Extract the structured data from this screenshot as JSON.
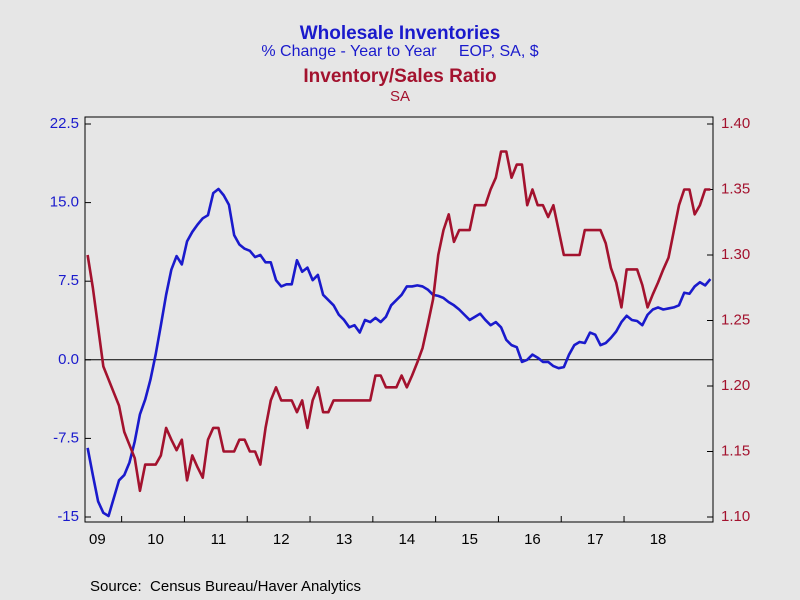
{
  "chart_data": {
    "type": "line",
    "title": "Wholesale Inventories",
    "subtitle": "% Change - Year to Year     EOP, SA, $",
    "title2": "Inventory/Sales Ratio",
    "subtitle2": "SA",
    "source": "Source:  Census Bureau/Haver Analytics",
    "categories": [
      "09",
      null,
      null,
      null,
      null,
      null,
      null,
      null,
      null,
      null,
      null,
      null,
      null,
      "10",
      null,
      null,
      null,
      null,
      null,
      null,
      null,
      null,
      null,
      null,
      null,
      "11",
      null,
      null,
      null,
      null,
      null,
      null,
      null,
      null,
      null,
      null,
      null,
      "12",
      null,
      null,
      null,
      null,
      null,
      null,
      null,
      null,
      null,
      null,
      null,
      "13",
      null,
      null,
      null,
      null,
      null,
      null,
      null,
      null,
      null,
      null,
      null,
      "14",
      null,
      null,
      null,
      null,
      null,
      null,
      null,
      null,
      null,
      null,
      null,
      "15",
      null,
      null,
      null,
      null,
      null,
      null,
      null,
      null,
      null,
      null,
      null,
      "16",
      null,
      null,
      null,
      null,
      null,
      null,
      null,
      null,
      null,
      null,
      null,
      "17",
      null,
      null,
      null,
      null,
      null,
      null,
      null,
      null,
      null,
      null,
      null,
      "18",
      null,
      null,
      null,
      null,
      null,
      null,
      null,
      null,
      null,
      null
    ],
    "ylim": [
      -15,
      22.5
    ],
    "yticks": [
      -15,
      {
        "value": -7.5,
        "label": "-7.5"
      },
      {
        "value": 0,
        "label": "0.0"
      },
      7.5,
      {
        "value": 15,
        "label": "15.0"
      },
      22.5
    ],
    "y2lim": [
      1.1,
      1.4
    ],
    "y2ticks": [
      {
        "value": 1.1,
        "label": "1.10"
      },
      1.15,
      {
        "value": 1.2,
        "label": "1.20"
      },
      1.25,
      {
        "value": 1.3,
        "label": "1.30"
      },
      1.35,
      {
        "value": 1.4,
        "label": "1.40"
      }
    ],
    "zero_line": true,
    "series": [
      {
        "name": "Wholesale Inventories",
        "color": "#1a1acc",
        "axis": "y",
        "values": [
          -8.4,
          -11,
          -13.5,
          -14.6,
          -14.9,
          -13.2,
          -11.5,
          -11,
          -9.8,
          -7.8,
          -5.2,
          -3.8,
          -1.9,
          0.5,
          3.3,
          6.2,
          8.6,
          9.9,
          9.1,
          11.3,
          12.2,
          12.9,
          13.5,
          13.8,
          15.9,
          16.3,
          15.7,
          14.8,
          11.9,
          11,
          10.6,
          10.4,
          9.8,
          10,
          9.3,
          9.3,
          7.6,
          7,
          7.2,
          7.2,
          9.5,
          8.4,
          8.8,
          7.6,
          8.1,
          6.2,
          5.7,
          5.2,
          4.3,
          3.8,
          3.1,
          3.3,
          2.6,
          3.8,
          3.6,
          4,
          3.6,
          4.1,
          5.2,
          5.7,
          6.2,
          7,
          7,
          7.1,
          7,
          6.7,
          6.2,
          6.1,
          5.9,
          5.5,
          5.2,
          4.8,
          4.3,
          3.8,
          4.1,
          4.4,
          3.8,
          3.3,
          3.6,
          3.1,
          1.9,
          1.4,
          1.2,
          -0.2,
          0,
          0.5,
          0.2,
          -0.2,
          -0.2,
          -0.6,
          -0.8,
          -0.7,
          0.5,
          1.4,
          1.7,
          1.6,
          2.6,
          2.4,
          1.4,
          1.6,
          2.1,
          2.7,
          3.6,
          4.2,
          3.8,
          3.7,
          3.3,
          4.3,
          4.8,
          5,
          4.8,
          4.9,
          5,
          5.2,
          6.4,
          6.3,
          7,
          7.4,
          7.1,
          7.7
        ]
      },
      {
        "name": "Inventory/Sales Ratio",
        "color": "#a3122e",
        "axis": "y2",
        "values": [
          1.3,
          1.275,
          1.245,
          1.215,
          1.205,
          1.195,
          1.185,
          1.165,
          1.155,
          1.145,
          1.12,
          1.14,
          1.14,
          1.14,
          1.147,
          1.168,
          1.159,
          1.151,
          1.159,
          1.128,
          1.147,
          1.138,
          1.13,
          1.159,
          1.168,
          1.168,
          1.15,
          1.15,
          1.15,
          1.159,
          1.159,
          1.15,
          1.15,
          1.14,
          1.168,
          1.189,
          1.199,
          1.189,
          1.189,
          1.189,
          1.18,
          1.189,
          1.168,
          1.189,
          1.199,
          1.18,
          1.18,
          1.189,
          1.189,
          1.189,
          1.189,
          1.189,
          1.189,
          1.189,
          1.189,
          1.208,
          1.208,
          1.199,
          1.199,
          1.199,
          1.208,
          1.199,
          1.208,
          1.218,
          1.229,
          1.247,
          1.266,
          1.3,
          1.319,
          1.331,
          1.31,
          1.319,
          1.319,
          1.319,
          1.338,
          1.338,
          1.338,
          1.35,
          1.359,
          1.379,
          1.379,
          1.359,
          1.369,
          1.369,
          1.338,
          1.35,
          1.338,
          1.338,
          1.329,
          1.338,
          1.319,
          1.3,
          1.3,
          1.3,
          1.3,
          1.319,
          1.319,
          1.319,
          1.319,
          1.309,
          1.29,
          1.279,
          1.26,
          1.289,
          1.289,
          1.289,
          1.277,
          1.26,
          1.27,
          1.279,
          1.289,
          1.298,
          1.318,
          1.338,
          1.35,
          1.35,
          1.331,
          1.338,
          1.35,
          1.35
        ]
      }
    ]
  }
}
